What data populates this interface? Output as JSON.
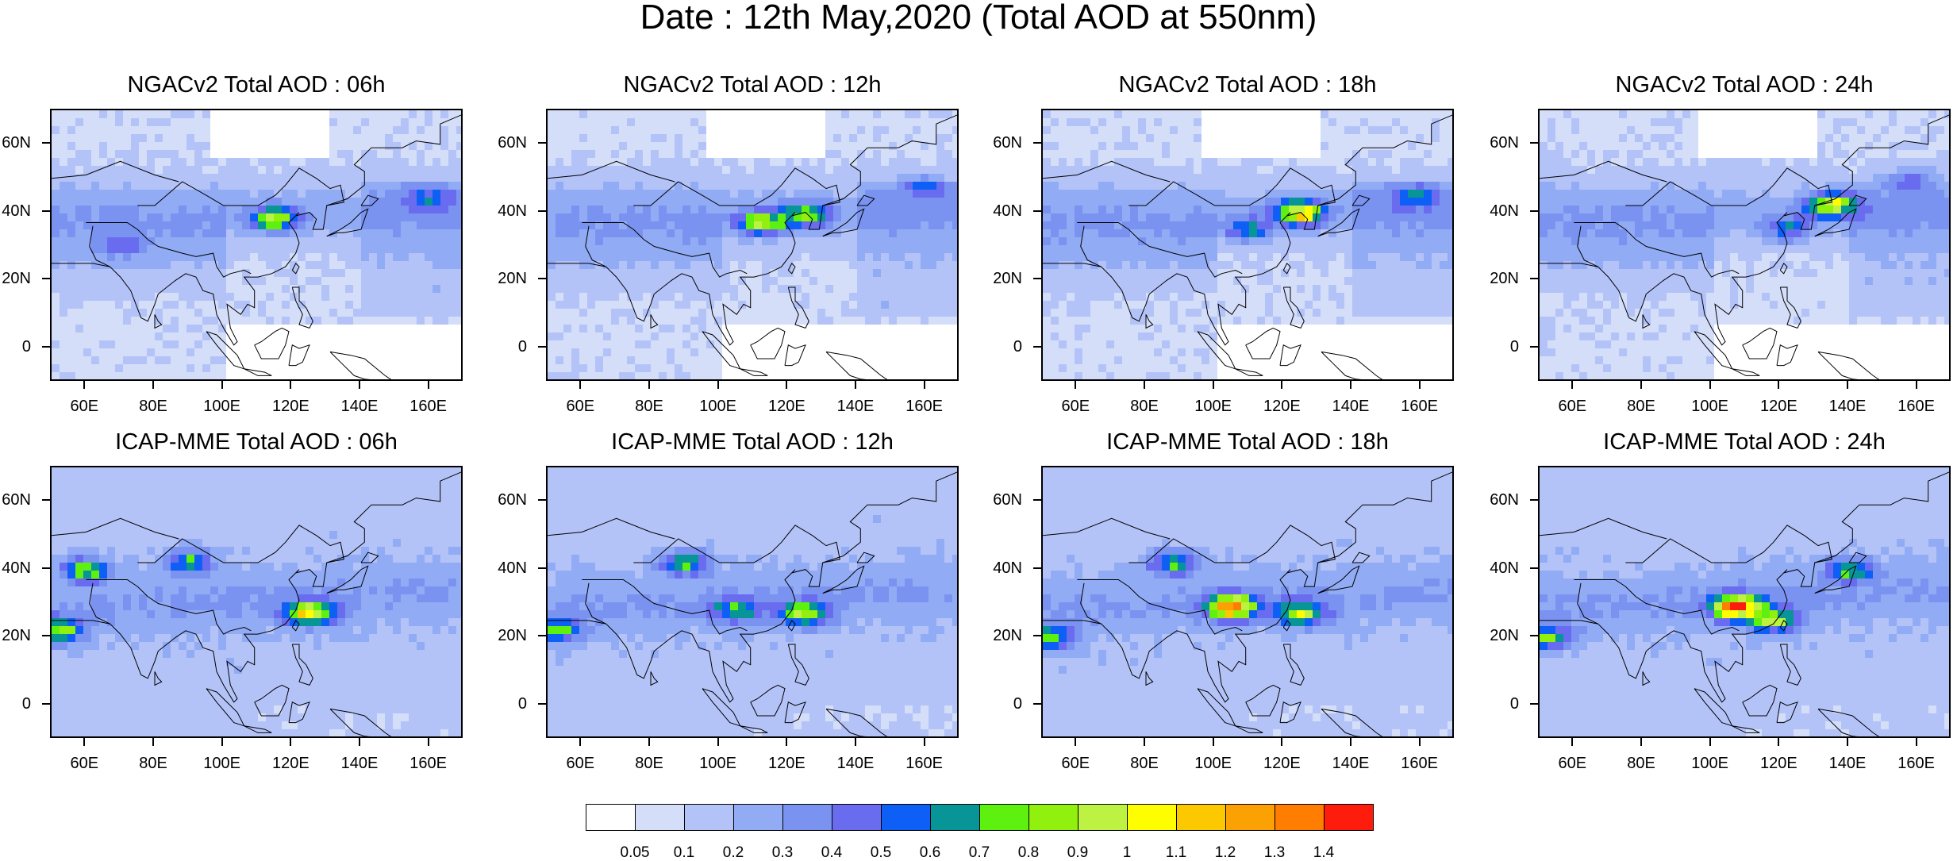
{
  "title": "Date : 12th May,2020 (Total AOD at 550nm)",
  "chart_data": {
    "type": "heatmap",
    "x_ticks": [
      "60E",
      "80E",
      "100E",
      "120E",
      "140E",
      "160E"
    ],
    "x_tick_values": [
      60,
      80,
      100,
      120,
      140,
      160
    ],
    "y_ticks": [
      "60N",
      "40N",
      "20N",
      "0"
    ],
    "y_tick_values": [
      60,
      40,
      20,
      0
    ],
    "xlim": [
      50,
      170
    ],
    "ylim": [
      -10,
      70
    ],
    "panels": [
      {
        "title": "NGACv2 Total AOD : 06h",
        "model": "NGACv2",
        "hour": "06h",
        "hotspots": [
          {
            "lon": 115,
            "lat": 38,
            "aod": 0.85
          },
          {
            "lon": 160,
            "lat": 44,
            "aod": 0.45
          },
          {
            "lon": 70,
            "lat": 30,
            "aod": 0.4
          }
        ]
      },
      {
        "title": "NGACv2 Total AOD : 12h",
        "model": "NGACv2",
        "hour": "12h",
        "hotspots": [
          {
            "lon": 112,
            "lat": 37,
            "aod": 0.9
          },
          {
            "lon": 125,
            "lat": 39,
            "aod": 0.8
          },
          {
            "lon": 160,
            "lat": 48,
            "aod": 0.45
          }
        ]
      },
      {
        "title": "NGACv2 Total AOD : 18h",
        "model": "NGACv2",
        "hour": "18h",
        "hotspots": [
          {
            "lon": 125,
            "lat": 40,
            "aod": 1.1
          },
          {
            "lon": 110,
            "lat": 35,
            "aod": 0.6
          },
          {
            "lon": 158,
            "lat": 45,
            "aod": 0.5
          }
        ]
      },
      {
        "title": "NGACv2 Total AOD : 24h",
        "model": "NGACv2",
        "hour": "24h",
        "hotspots": [
          {
            "lon": 135,
            "lat": 42,
            "aod": 1.0
          },
          {
            "lon": 122,
            "lat": 35,
            "aod": 0.55
          },
          {
            "lon": 158,
            "lat": 50,
            "aod": 0.45
          }
        ]
      },
      {
        "title": "ICAP-MME Total AOD : 06h",
        "model": "ICAP-MME",
        "hour": "06h",
        "hotspots": [
          {
            "lon": 125,
            "lat": 27,
            "aod": 1.05
          },
          {
            "lon": 52,
            "lat": 22,
            "aod": 0.85
          },
          {
            "lon": 60,
            "lat": 40,
            "aod": 0.8
          },
          {
            "lon": 90,
            "lat": 42,
            "aod": 0.7
          }
        ]
      },
      {
        "title": "ICAP-MME Total AOD : 12h",
        "model": "ICAP-MME",
        "hour": "12h",
        "hotspots": [
          {
            "lon": 125,
            "lat": 27,
            "aod": 0.85
          },
          {
            "lon": 52,
            "lat": 22,
            "aod": 0.75
          },
          {
            "lon": 90,
            "lat": 42,
            "aod": 0.7
          },
          {
            "lon": 105,
            "lat": 28,
            "aod": 0.65
          }
        ]
      },
      {
        "title": "ICAP-MME Total AOD : 18h",
        "model": "ICAP-MME",
        "hour": "18h",
        "hotspots": [
          {
            "lon": 105,
            "lat": 29,
            "aod": 1.3
          },
          {
            "lon": 125,
            "lat": 27,
            "aod": 0.85
          },
          {
            "lon": 52,
            "lat": 20,
            "aod": 0.75
          },
          {
            "lon": 88,
            "lat": 42,
            "aod": 0.7
          }
        ]
      },
      {
        "title": "ICAP-MME Total AOD : 24h",
        "model": "ICAP-MME",
        "hour": "24h",
        "hotspots": [
          {
            "lon": 107,
            "lat": 29,
            "aod": 1.3
          },
          {
            "lon": 118,
            "lat": 25,
            "aod": 0.9
          },
          {
            "lon": 52,
            "lat": 20,
            "aod": 0.75
          },
          {
            "lon": 140,
            "lat": 40,
            "aod": 0.65
          }
        ]
      }
    ],
    "colorbar": {
      "levels": [
        "0.05",
        "0.1",
        "0.2",
        "0.3",
        "0.4",
        "0.5",
        "0.6",
        "0.7",
        "0.8",
        "0.9",
        "1",
        "1.1",
        "1.2",
        "1.3",
        "1.4"
      ],
      "colors": [
        "#ffffff",
        "#d4def9",
        "#b4c3f7",
        "#92abf5",
        "#7b93f0",
        "#6a6cef",
        "#0d5ff5",
        "#089597",
        "#5ef00e",
        "#92f00f",
        "#bdf243",
        "#fefe00",
        "#fcc900",
        "#fca104",
        "#ff7d00",
        "#fe1d0d"
      ]
    }
  }
}
